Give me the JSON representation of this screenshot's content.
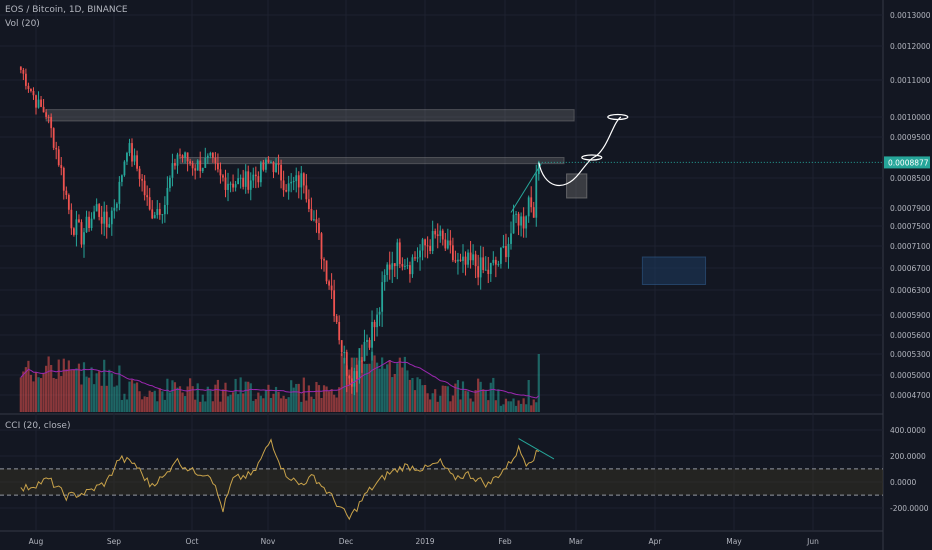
{
  "header": {
    "symbol": "EOS / Bitcoin, 1D, BINANCE",
    "volume_label": "Vol (20)",
    "cci_label": "CCI (20, close)"
  },
  "colors": {
    "background": "#131722",
    "up": "#26a69a",
    "down": "#ef5350",
    "volume_ma": "#9c27b0",
    "cci_line": "#c8a24a",
    "price_tag": "#26a69a",
    "grid": "#1e2230"
  },
  "chart_data": [
    {
      "type": "candlestick",
      "title": "EOS / Bitcoin, 1D, BINANCE",
      "y_ticks": [
        "0.0013000",
        "0.0012000",
        "0.0011000",
        "0.0010000",
        "0.0009500",
        "0.0008500",
        "0.0007900",
        "0.0007500",
        "0.0007100",
        "0.0006700",
        "0.0006300",
        "0.0005900",
        "0.0005600",
        "0.0005300",
        "0.0005000",
        "0.0004700"
      ],
      "x_ticks": [
        "Aug",
        "Sep",
        "Oct",
        "Nov",
        "Dec",
        "2019",
        "Feb",
        "Mar",
        "Apr",
        "May",
        "Jun"
      ],
      "last_price": "0.0008877",
      "ylim": [
        0.00045,
        0.00135
      ],
      "keypoints_close": [
        [
          "2018-07-25",
          0.00113
        ],
        [
          "2018-08-01",
          0.00103
        ],
        [
          "2018-08-04",
          0.00101
        ],
        [
          "2018-08-08",
          0.00092
        ],
        [
          "2018-08-14",
          0.00076
        ],
        [
          "2018-08-18",
          0.00073
        ],
        [
          "2018-08-24",
          0.00079
        ],
        [
          "2018-08-28",
          0.00075
        ],
        [
          "2018-09-02",
          0.00083
        ],
        [
          "2018-09-05",
          0.00093
        ],
        [
          "2018-09-10",
          0.00086
        ],
        [
          "2018-09-14",
          0.00078
        ],
        [
          "2018-09-20",
          0.0008
        ],
        [
          "2018-09-25",
          0.00091
        ],
        [
          "2018-10-02",
          0.00088
        ],
        [
          "2018-10-08",
          0.00089
        ],
        [
          "2018-10-12",
          0.00085
        ],
        [
          "2018-10-20",
          0.00084
        ],
        [
          "2018-10-27",
          0.00086
        ],
        [
          "2018-11-01",
          0.00089
        ],
        [
          "2018-11-08",
          0.00083
        ],
        [
          "2018-11-14",
          0.00085
        ],
        [
          "2018-11-20",
          0.00072
        ],
        [
          "2018-11-25",
          0.00063
        ],
        [
          "2018-11-30",
          0.00052
        ],
        [
          "2018-12-04",
          0.0005
        ],
        [
          "2018-12-08",
          0.00055
        ],
        [
          "2018-12-13",
          0.00058
        ],
        [
          "2018-12-17",
          0.00067
        ],
        [
          "2018-12-21",
          0.0007
        ],
        [
          "2018-12-26",
          0.00068
        ],
        [
          "2019-01-01",
          0.00071
        ],
        [
          "2019-01-06",
          0.00073
        ],
        [
          "2019-01-10",
          0.0007
        ],
        [
          "2019-01-15",
          0.00067
        ],
        [
          "2019-01-20",
          0.00068
        ],
        [
          "2019-01-25",
          0.00066
        ],
        [
          "2019-01-30",
          0.00068
        ],
        [
          "2019-02-03",
          0.00072
        ],
        [
          "2019-02-06",
          0.00077
        ],
        [
          "2019-02-09",
          0.00076
        ],
        [
          "2019-02-11",
          0.00081
        ],
        [
          "2019-02-13",
          0.00079
        ],
        [
          "2019-02-15",
          0.000888
        ]
      ],
      "resistance_zones": [
        {
          "from": "2018-08-04",
          "to": "2019-03-01",
          "top": 0.00102,
          "bottom": 0.00099
        },
        {
          "from": "2018-09-26",
          "to": "2019-02-25",
          "top": 0.0009,
          "bottom": 0.000885
        }
      ],
      "support_boxes": [
        {
          "from": "2019-02-26",
          "to": "2019-03-06",
          "top": 0.00086,
          "bottom": 0.00081,
          "color": "gray"
        },
        {
          "from": "2019-03-28",
          "to": "2019-04-22",
          "top": 0.00069,
          "bottom": 0.00064,
          "color": "blue"
        }
      ]
    },
    {
      "type": "bar",
      "title": "Vol (20)",
      "note": "volume histogram colored by candle direction with 20-period moving average"
    },
    {
      "type": "line",
      "title": "CCI (20, close)",
      "y_ticks": [
        "400.0000",
        "200.0000",
        "0.0000",
        "-200.0000"
      ],
      "ylim": [
        -300,
        450
      ],
      "bands": [
        100,
        -100
      ],
      "keypoints": [
        [
          "2018-07-25",
          -60
        ],
        [
          "2018-08-05",
          20
        ],
        [
          "2018-08-12",
          -110
        ],
        [
          "2018-08-20",
          -80
        ],
        [
          "2018-08-28",
          0
        ],
        [
          "2018-09-02",
          180
        ],
        [
          "2018-09-08",
          140
        ],
        [
          "2018-09-14",
          -20
        ],
        [
          "2018-09-20",
          40
        ],
        [
          "2018-09-24",
          170
        ],
        [
          "2018-10-01",
          80
        ],
        [
          "2018-10-08",
          60
        ],
        [
          "2018-10-13",
          -210
        ],
        [
          "2018-10-17",
          20
        ],
        [
          "2018-10-25",
          60
        ],
        [
          "2018-11-01",
          320
        ],
        [
          "2018-11-06",
          80
        ],
        [
          "2018-11-12",
          -20
        ],
        [
          "2018-11-18",
          40
        ],
        [
          "2018-11-24",
          -90
        ],
        [
          "2018-12-02",
          -280
        ],
        [
          "2018-12-09",
          -80
        ],
        [
          "2018-12-17",
          60
        ],
        [
          "2018-12-24",
          120
        ],
        [
          "2019-01-01",
          100
        ],
        [
          "2019-01-07",
          150
        ],
        [
          "2019-01-12",
          30
        ],
        [
          "2019-01-18",
          60
        ],
        [
          "2019-01-26",
          -20
        ],
        [
          "2019-02-03",
          130
        ],
        [
          "2019-02-07",
          250
        ],
        [
          "2019-02-10",
          150
        ],
        [
          "2019-02-13",
          190
        ],
        [
          "2019-02-15",
          230
        ]
      ],
      "trendline": {
        "from": [
          "2019-02-07",
          330
        ],
        "to": [
          "2019-02-21",
          175
        ]
      }
    }
  ]
}
